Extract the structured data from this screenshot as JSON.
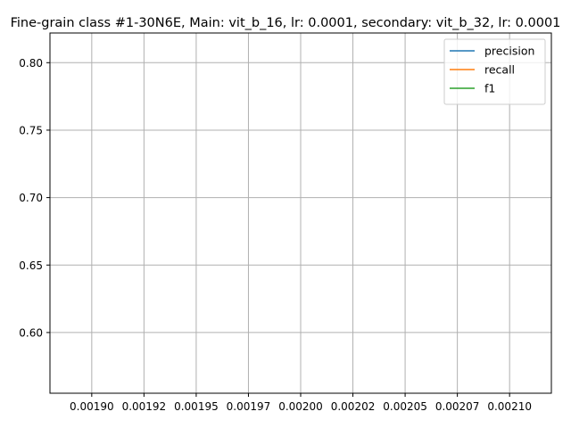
{
  "chart_data": {
    "type": "line",
    "title": "Fine-grain class #1-30N6E, Main: vit_b_16, lr: 0.0001, secondary: vit_b_32, lr: 0.0001",
    "xlabel": "",
    "ylabel": "",
    "xlim": [
      0.00188,
      0.00212
    ],
    "ylim": [
      0.555,
      0.822
    ],
    "x_ticks": [
      {
        "value": 0.0019,
        "label": "0.00190"
      },
      {
        "value": 0.001925,
        "label": "0.00192"
      },
      {
        "value": 0.00195,
        "label": "0.00195"
      },
      {
        "value": 0.001975,
        "label": "0.00197"
      },
      {
        "value": 0.002,
        "label": "0.00200"
      },
      {
        "value": 0.002025,
        "label": "0.00202"
      },
      {
        "value": 0.00205,
        "label": "0.00205"
      },
      {
        "value": 0.002075,
        "label": "0.00207"
      },
      {
        "value": 0.0021,
        "label": "0.00210"
      }
    ],
    "y_ticks": [
      {
        "value": 0.6,
        "label": "0.60"
      },
      {
        "value": 0.65,
        "label": "0.65"
      },
      {
        "value": 0.7,
        "label": "0.70"
      },
      {
        "value": 0.75,
        "label": "0.75"
      },
      {
        "value": 0.8,
        "label": "0.80"
      }
    ],
    "grid": true,
    "legend": "top-right",
    "series": [
      {
        "name": "precision",
        "color": "#1f77b4",
        "x": [],
        "y": []
      },
      {
        "name": "recall",
        "color": "#ff7f0e",
        "x": [],
        "y": []
      },
      {
        "name": "f1",
        "color": "#2ca02c",
        "x": [],
        "y": []
      }
    ]
  }
}
